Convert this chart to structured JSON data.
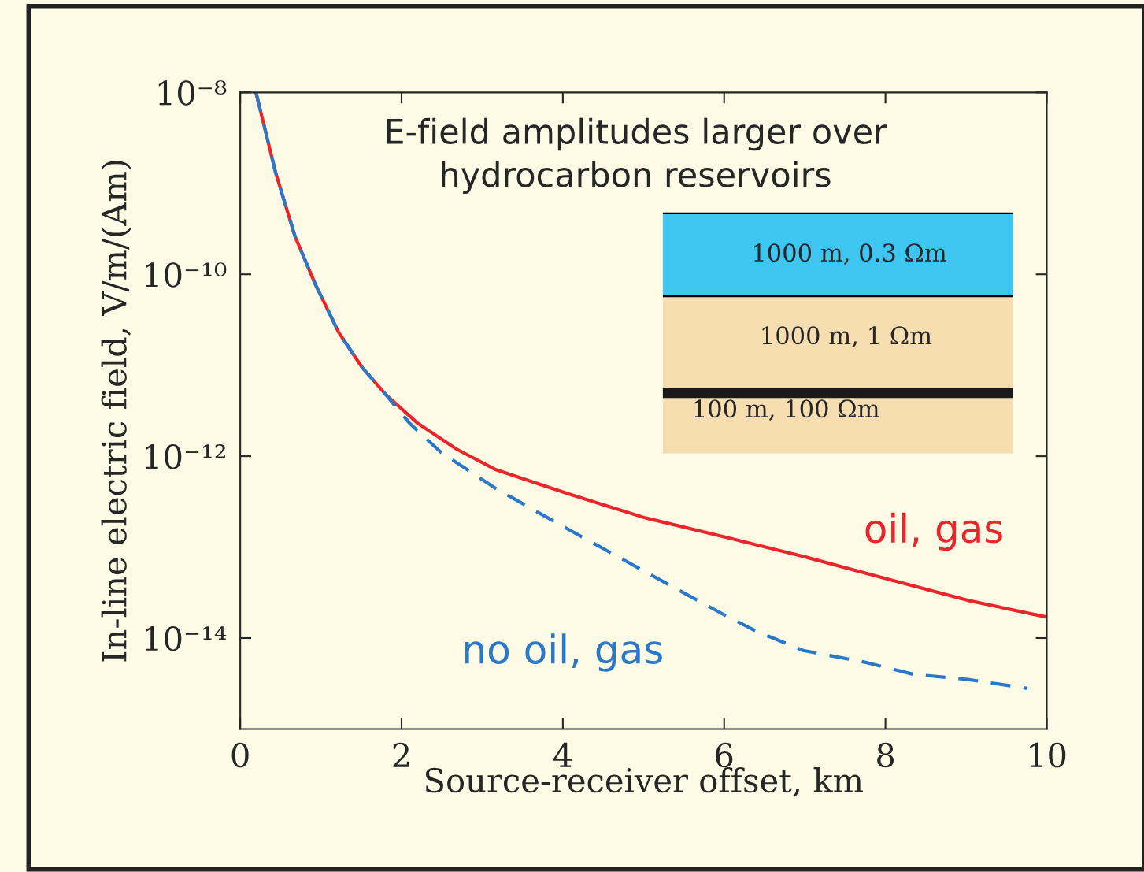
{
  "chart_data": {
    "type": "line",
    "title": "E-field amplitudes larger over\nhydrocarbon reservoirs",
    "xlabel": "Source-receiver offset, km",
    "ylabel": "In-line electric field, V/m/(Am)",
    "log": "y",
    "xlim": [
      0,
      10
    ],
    "xticks": [
      0,
      2,
      4,
      6,
      8,
      10
    ],
    "ylim": [
      1e-15,
      1e-08
    ],
    "yticks": [
      {
        "value": 1e-08,
        "label": "10⁻⁸"
      },
      {
        "value": 1e-10,
        "label": "10⁻¹⁰"
      },
      {
        "value": 1e-12,
        "label": "10⁻¹²"
      },
      {
        "value": 1e-14,
        "label": "10⁻¹⁴"
      }
    ],
    "grid": false,
    "legend": false,
    "marker": "none",
    "annotations": [
      "1000 m, 0.3 Ωm",
      "1000 m, 1 Ωm",
      "100 m, 100 Ωm"
    ],
    "series": [
      {
        "name": "oil, gas",
        "color": "#e8262b",
        "line_style": "solid",
        "x": [
          0.195,
          0.44,
          0.68,
          0.93,
          1.22,
          1.51,
          1.8,
          2.2,
          2.68,
          3.17,
          4.05,
          5.02,
          6.0,
          6.98,
          8.05,
          9.02,
          10
        ],
        "values": [
          1e-08,
          1.3e-09,
          2.6e-10,
          7.8e-11,
          2.3e-11,
          9.5e-12,
          4.8e-12,
          2.3e-12,
          1.2e-12,
          7.1e-13,
          3.9e-13,
          2.1e-13,
          1.3e-13,
          7.9e-14,
          4.4e-14,
          2.6e-14,
          1.7e-14
        ]
      },
      {
        "name": "no oil, gas",
        "color": "#2a78c8",
        "line_style": "dashed",
        "x": [
          0.195,
          0.44,
          0.68,
          0.93,
          1.22,
          1.51,
          1.8,
          2.1,
          2.49,
          3.17,
          4.05,
          5.12,
          6.0,
          6.39,
          6.98,
          7.76,
          8.34,
          9.02,
          9.76
        ],
        "values": [
          1e-08,
          1.3e-09,
          2.6e-10,
          7.8e-11,
          2.3e-11,
          9.5e-12,
          4.8e-12,
          2.3e-12,
          1.1e-12,
          4.4e-13,
          1.6e-13,
          4.8e-14,
          1.8e-14,
          1.2e-14,
          7.3e-15,
          5.4e-15,
          4e-15,
          3.5e-15,
          2.8e-15
        ]
      }
    ]
  }
}
